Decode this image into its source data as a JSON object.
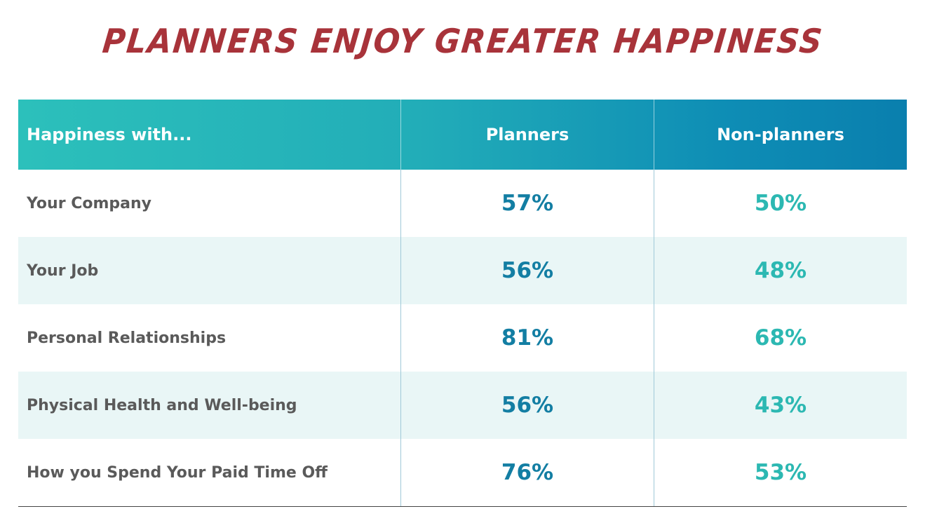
{
  "title": "PLANNERS ENJOY GREATER HAPPINESS",
  "table": {
    "headers": [
      "Happiness with...",
      "Planners",
      "Non-planners"
    ],
    "rows": [
      {
        "label": "Your Company",
        "planners": "57%",
        "non_planners": "50%"
      },
      {
        "label": "Your Job",
        "planners": "56%",
        "non_planners": "48%"
      },
      {
        "label": "Personal Relationships",
        "planners": "81%",
        "non_planners": "68%"
      },
      {
        "label": "Physical Health and Well-being",
        "planners": "56%",
        "non_planners": "43%"
      },
      {
        "label": "How you Spend Your Paid Time Off",
        "planners": "76%",
        "non_planners": "53%"
      }
    ]
  },
  "colors": {
    "title": "#a8333a",
    "header_start": "#2cc0bb",
    "header_end": "#0a7fae",
    "planners_value": "#137ea3",
    "non_planners_value": "#2cb8b2",
    "alt_row": "#e9f6f6"
  },
  "chart_data": {
    "type": "table",
    "title": "PLANNERS ENJOY GREATER HAPPINESS",
    "columns": [
      "Happiness with...",
      "Planners",
      "Non-planners"
    ],
    "categories": [
      "Your Company",
      "Your Job",
      "Personal Relationships",
      "Physical Health and Well-being",
      "How you Spend Your Paid Time Off"
    ],
    "series": [
      {
        "name": "Planners",
        "values": [
          57,
          56,
          81,
          56,
          76
        ]
      },
      {
        "name": "Non-planners",
        "values": [
          50,
          48,
          68,
          43,
          53
        ]
      }
    ],
    "unit": "%"
  }
}
